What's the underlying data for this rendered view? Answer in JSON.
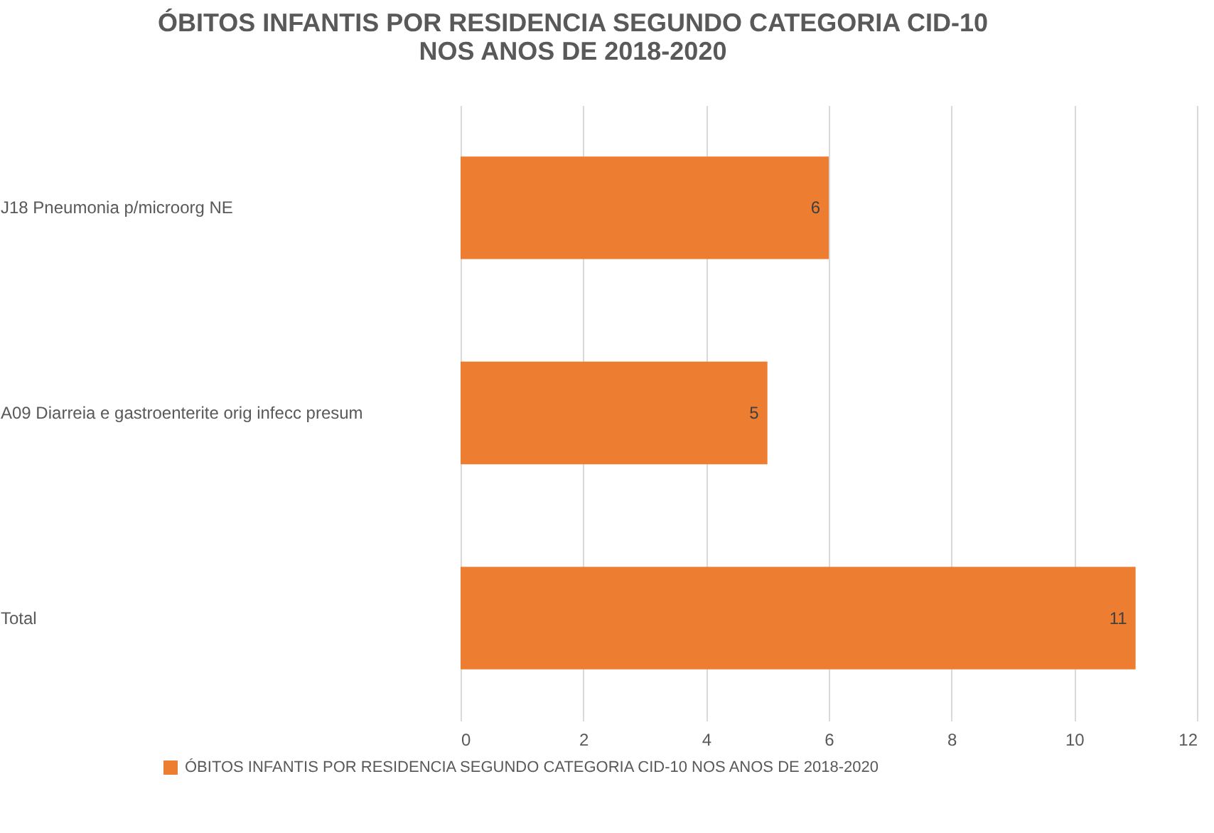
{
  "chart_data": {
    "type": "bar",
    "orientation": "horizontal",
    "title": "ÓBITOS INFANTIS POR RESIDENCIA SEGUNDO CATEGORIA CID-10\nNOS ANOS DE 2018-2020",
    "categories": [
      "J18 Pneumonia p/microorg NE",
      "A09 Diarreia e gastroenterite orig infecc presum",
      "Total"
    ],
    "series": [
      {
        "name": "ÓBITOS INFANTIS POR RESIDENCIA SEGUNDO CATEGORIA CID-10 NOS ANOS DE 2018-2020",
        "color": "#ed7d31",
        "values": [
          6,
          5,
          11
        ]
      }
    ],
    "xlim": [
      0,
      12
    ],
    "xticks": [
      0,
      2,
      4,
      6,
      8,
      10,
      12
    ],
    "grid": "x",
    "legend": "bottom",
    "data_labels": true
  }
}
